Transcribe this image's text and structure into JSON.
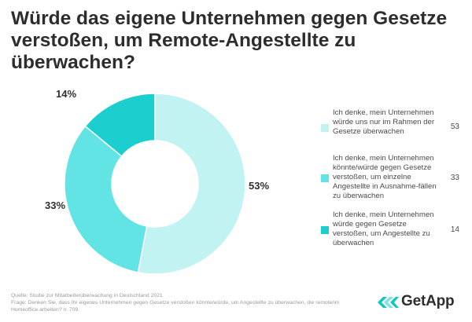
{
  "title": "Würde das eigene Unternehmen gegen Gesetze verstoßen, um Remote-Angestellte zu überwachen?",
  "chart_data": {
    "type": "pie",
    "donut": true,
    "slices": [
      {
        "label": "Ich denke, mein Unternehmen würde uns nur im Rahmen der Gesetze überwachen",
        "value": 53,
        "value_label": "53%",
        "color": "#c2f3f3"
      },
      {
        "label": "Ich denke, mein Unternehmen könnte/würde gegen Gesetze verstoßen, um einzelne Angestellte in Ausnahme-fällen zu überwachen",
        "value": 33,
        "value_label": "33%",
        "color": "#63e4e4"
      },
      {
        "label": "Ich denke, mein Unternehmen würde gegen Gesetze verstoßen, um Angestellte zu überwachen",
        "value": 14,
        "value_label": "14%",
        "color": "#1ccece"
      }
    ],
    "legend_values": [
      "53",
      "33",
      "14"
    ],
    "legend_position": "right"
  },
  "footer": {
    "source": "Quelle: Studie zur Mitarbeiterüberwachung in Deutschland 2021",
    "question": "Frage: Denken Sie, dass Ihr eigenes Unternehmen gegen Gesetze verstoßen könnte/würde, um Angestellte zu überwachen, die remote/im Homeoffice arbeiten? n: 709."
  },
  "logo": {
    "text": "GetApp",
    "colors": [
      "#17c3c3",
      "#7fe3e3"
    ]
  }
}
